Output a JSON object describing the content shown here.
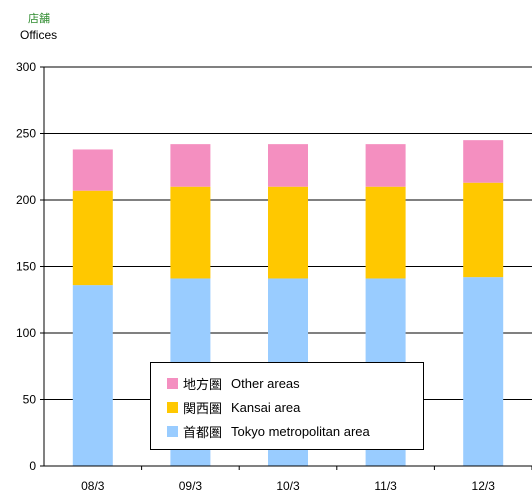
{
  "unit_label_jp": "店舗",
  "unit_label_en": "Offices",
  "colors": {
    "other": "#f48fc0",
    "kansai": "#ffc800",
    "tokyo": "#99ccff",
    "unit_jp": "#2e8b2e"
  },
  "legend": [
    {
      "jp": "地方圏",
      "en": "Other areas",
      "color": "#f48fc0"
    },
    {
      "jp": "関西圏",
      "en": "Kansai area",
      "color": "#ffc800"
    },
    {
      "jp": "首都圏",
      "en": "Tokyo metropolitan area",
      "color": "#99ccff"
    }
  ],
  "chart_data": {
    "type": "bar",
    "stacked": true,
    "categories": [
      "08/3",
      "09/3",
      "10/3",
      "11/3",
      "12/3"
    ],
    "series": [
      {
        "name": "首都圏 Tokyo metropolitan area",
        "values": [
          136,
          141,
          141,
          141,
          142
        ],
        "color": "#99ccff"
      },
      {
        "name": "関西圏 Kansai area",
        "values": [
          71,
          69,
          69,
          69,
          71
        ],
        "color": "#ffc800"
      },
      {
        "name": "地方圏 Other areas",
        "values": [
          31,
          32,
          32,
          32,
          32
        ],
        "color": "#f48fc0"
      }
    ],
    "ylim": [
      0,
      300
    ],
    "yticks": [
      0,
      50,
      100,
      150,
      200,
      250,
      300
    ],
    "grid": true,
    "legend_position": "bottom-center"
  }
}
